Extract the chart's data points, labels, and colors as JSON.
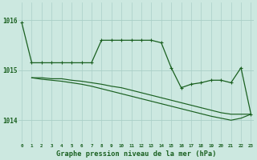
{
  "hours": [
    0,
    1,
    2,
    3,
    4,
    5,
    6,
    7,
    8,
    9,
    10,
    11,
    12,
    13,
    14,
    15,
    16,
    17,
    18,
    19,
    20,
    21,
    22,
    23
  ],
  "main_series": [
    1015.95,
    1015.15,
    null,
    null,
    null,
    null,
    null,
    null,
    1015.6,
    1015.6,
    1015.6,
    1015.6,
    1015.6,
    1015.6,
    1015.55,
    1015.05,
    1014.65,
    null,
    null,
    null,
    null,
    null,
    null,
    null
  ],
  "measured_series": [
    null,
    1015.15,
    null,
    1014.82,
    null,
    null,
    null,
    1015.0,
    null,
    null,
    null,
    null,
    null,
    null,
    null,
    null,
    1014.65,
    1014.72,
    1014.75,
    1014.8,
    null,
    1014.75,
    1015.05,
    null
  ],
  "top_connector": [
    1015.95,
    1015.15,
    1015.15,
    1015.15,
    1015.15,
    1015.15,
    1015.15,
    1015.15,
    1015.6,
    1015.6,
    1015.6,
    1015.6,
    1015.6,
    1015.6,
    1015.55,
    1015.05,
    1014.65,
    1014.72,
    1014.75,
    1014.8,
    1014.8,
    1014.75,
    1015.05,
    1014.12
  ],
  "low_line1": [
    null,
    1014.85,
    1014.85,
    1014.83,
    1014.83,
    1014.8,
    1014.78,
    1014.75,
    1014.72,
    1014.68,
    1014.65,
    1014.6,
    1014.55,
    1014.5,
    1014.45,
    1014.4,
    1014.35,
    1014.3,
    1014.25,
    1014.2,
    1014.15,
    1014.12,
    1014.12,
    1014.12
  ],
  "low_line2": [
    null,
    1014.85,
    1014.82,
    1014.8,
    1014.78,
    1014.75,
    1014.72,
    1014.68,
    1014.63,
    1014.58,
    1014.53,
    1014.48,
    1014.43,
    1014.38,
    1014.33,
    1014.28,
    1014.23,
    1014.18,
    1014.13,
    1014.08,
    1014.04,
    1014.0,
    1014.04,
    1014.12
  ],
  "bg_color": "#cce8e0",
  "grid_color": "#aacfc8",
  "line_color": "#1a6020",
  "ylabel_values": [
    1014,
    1015,
    1016
  ],
  "ylim_min": 1013.55,
  "ylim_max": 1016.35,
  "xlim_min": -0.3,
  "xlim_max": 23.3,
  "xlabel": "Graphe pression niveau de la mer (hPa)"
}
